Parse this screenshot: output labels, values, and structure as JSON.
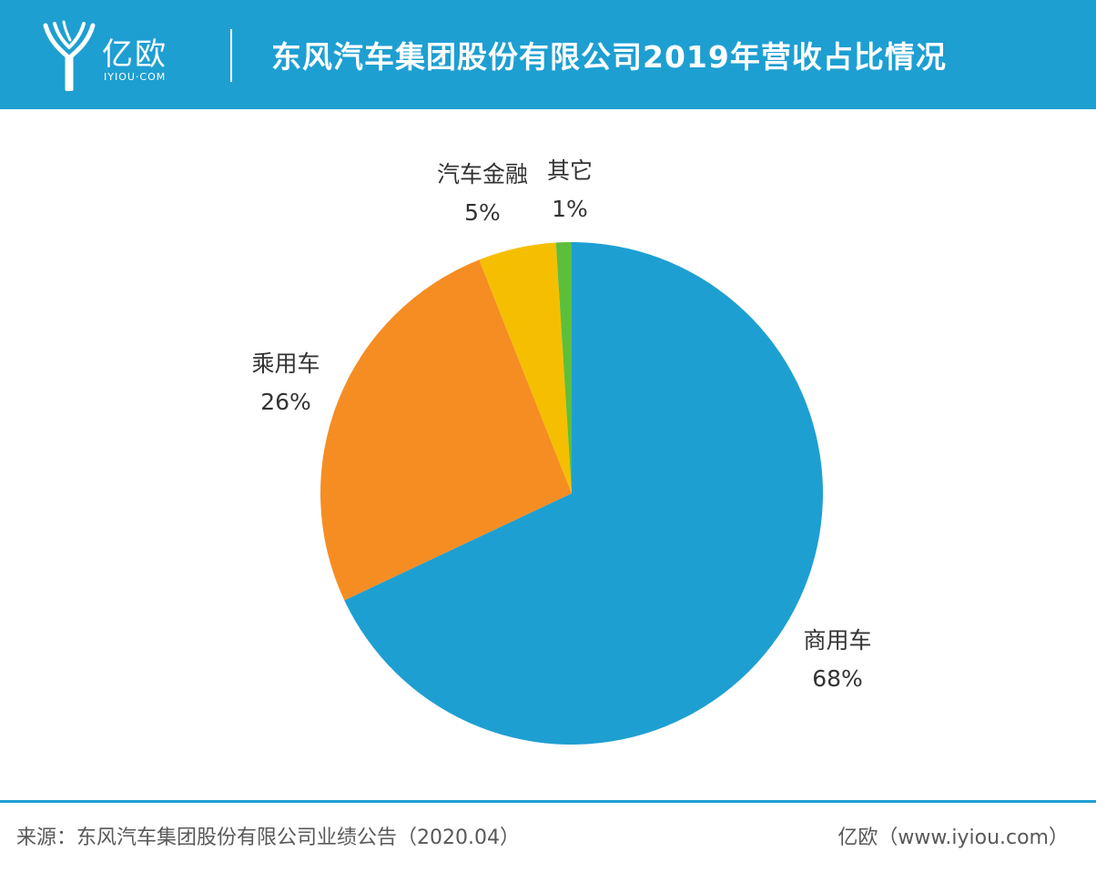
{
  "header": {
    "logo_text": "亿欧",
    "logo_sub": "IYIOU·COM",
    "title": "东风汽车集团股份有限公司2019年营收占比情况"
  },
  "chart_data": {
    "type": "pie",
    "title": "东风汽车集团股份有限公司2019年营收占比情况",
    "slices": [
      {
        "label": "商用车",
        "value": 68,
        "value_label": "68%",
        "color": "#1e9fd2"
      },
      {
        "label": "乘用车",
        "value": 26,
        "value_label": "26%",
        "color": "#f58d23"
      },
      {
        "label": "汽车金融",
        "value": 5,
        "value_label": "5%",
        "color": "#f5bf00"
      },
      {
        "label": "其它",
        "value": 1,
        "value_label": "1%",
        "color": "#5cbf3b"
      }
    ]
  },
  "footer": {
    "source": "来源：东风汽车集团股份有限公司业绩公告（2020.04）",
    "credit": "亿欧（www.iyiou.com）"
  },
  "colors": {
    "brand": "#1e9fd2",
    "footer_text": "#595959",
    "label_text": "#333333"
  }
}
